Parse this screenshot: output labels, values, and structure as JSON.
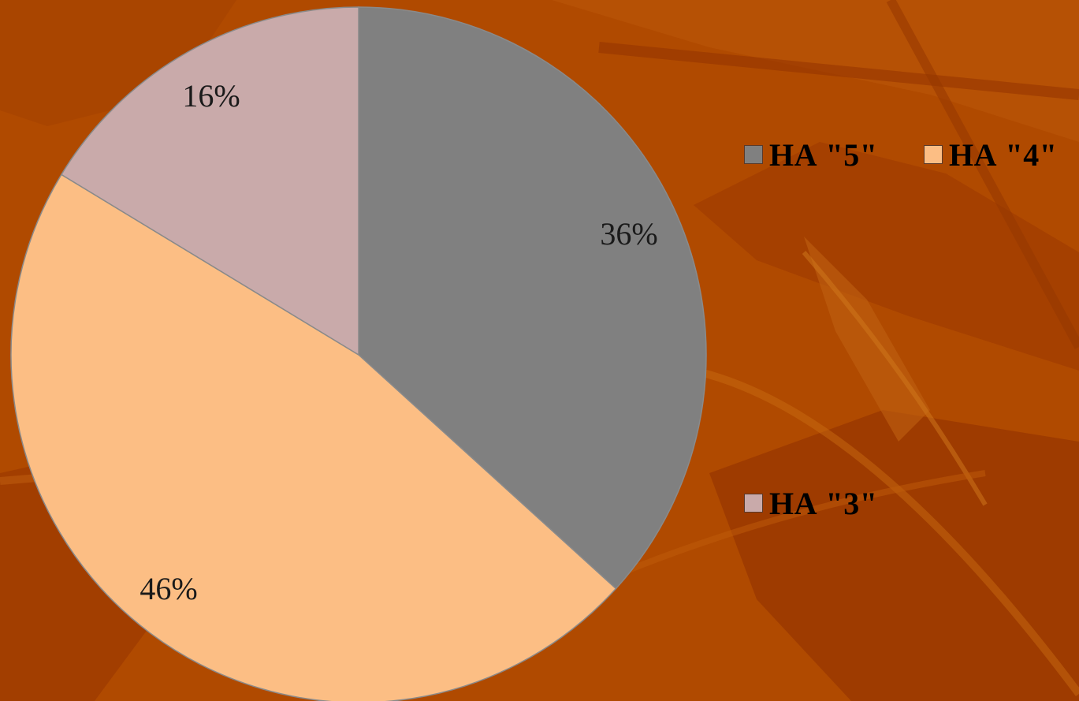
{
  "colors": {
    "background": "#b04a00",
    "background_dark": "#9a3a00",
    "background_light": "#c25a06",
    "slice_edge": "#8a8a8a"
  },
  "chart_data": {
    "type": "pie",
    "title": "",
    "start_angle_deg": 0,
    "direction": "clockwise",
    "legend_position": "right",
    "series": [
      {
        "slices": [
          {
            "label": "НА \"5\"",
            "value": 36,
            "data_label": "36%",
            "color": "#808080"
          },
          {
            "label": "НА \"4\"",
            "value": 46,
            "data_label": "46%",
            "color": "#fcbe84"
          },
          {
            "label": "НА \"3\"",
            "value": 16,
            "data_label": "16%",
            "color": "#c9aaaa"
          }
        ]
      }
    ]
  }
}
